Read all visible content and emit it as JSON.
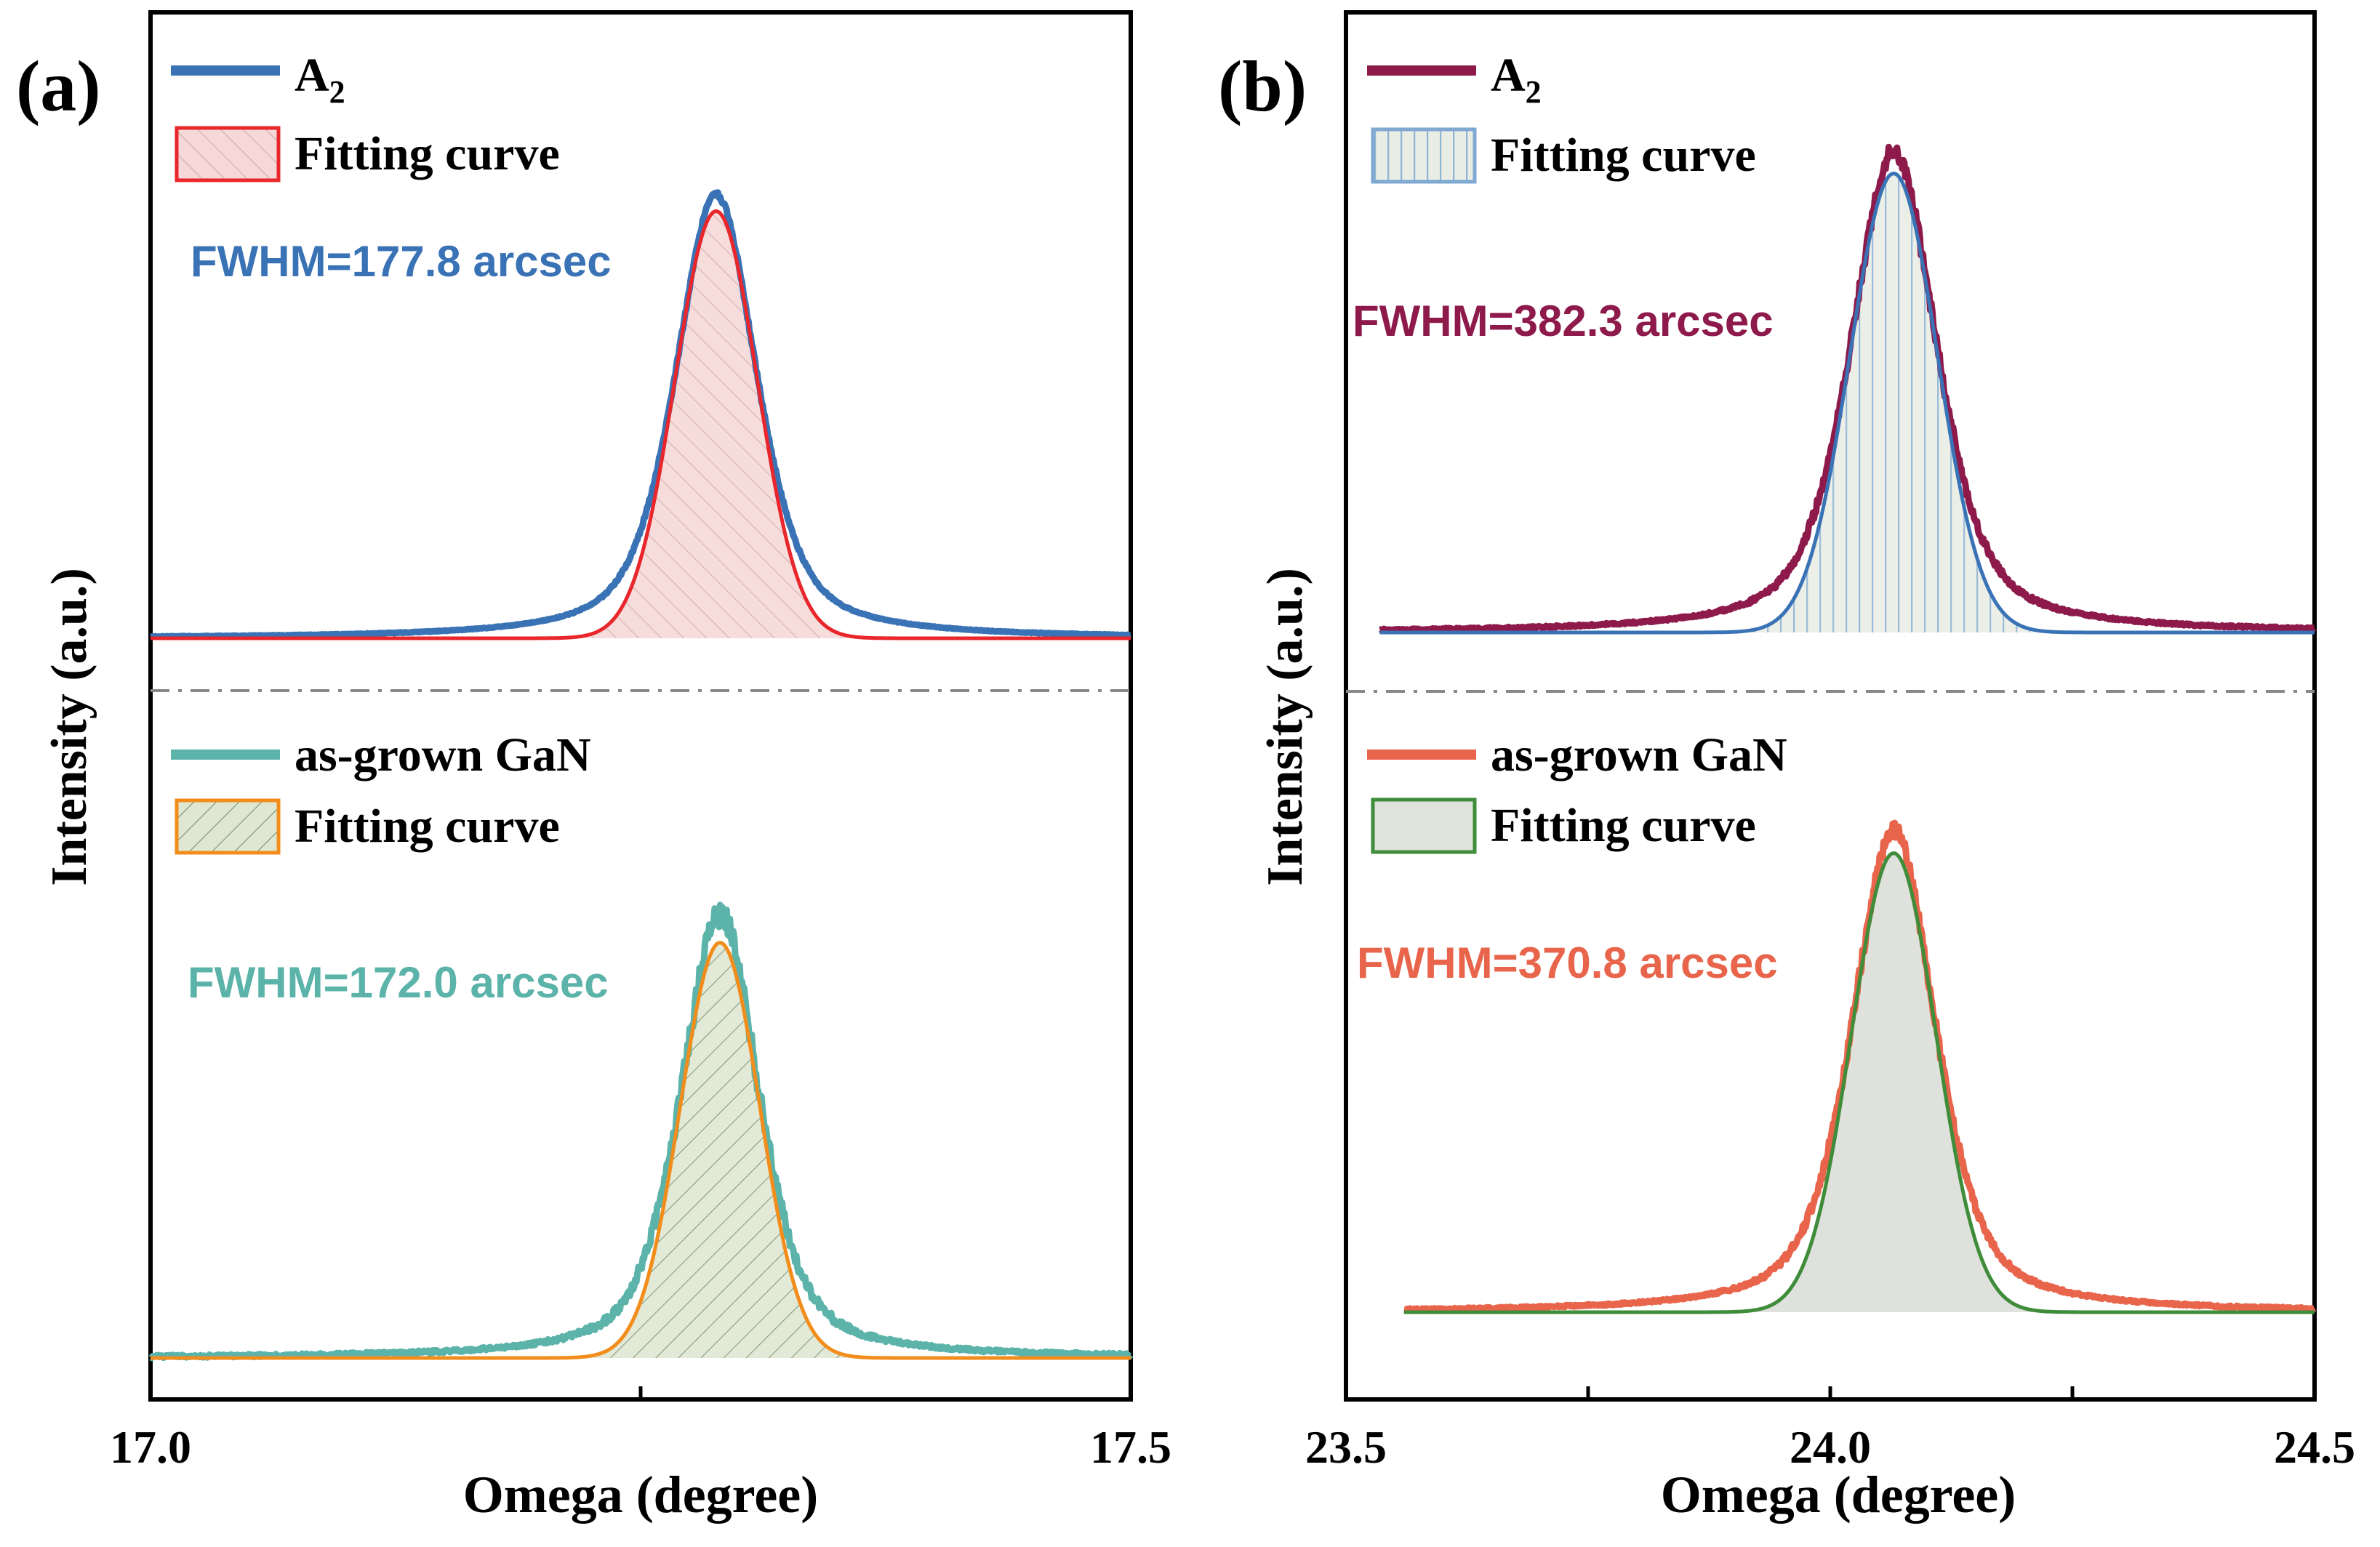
{
  "chart_data": [
    {
      "type": "line",
      "panel_label": "(a)",
      "xlabel": "Omega (degree)",
      "ylabel": "Intensity (a.u.)",
      "xlim": [
        17.0,
        17.5
      ],
      "x_tick_labels": [
        "17.0",
        "17.5"
      ],
      "x_ticks": [
        17.0,
        17.25,
        17.5
      ],
      "ylim": [
        0,
        1
      ],
      "subplots": [
        {
          "name": "top",
          "legend": [
            {
              "label": "A",
              "subscript": "2",
              "kind": "line",
              "color": "#3a73b5"
            },
            {
              "label": "Fitting curve",
              "kind": "hatched-box",
              "edge": "#e8262b",
              "fill": "#f6d8d8"
            }
          ],
          "annotation": {
            "text": "FWHM=177.8 arcsec",
            "color": "#3a73b5"
          },
          "series": [
            {
              "name": "A2",
              "role": "data",
              "color": "#3a73b5",
              "center": 17.2885,
              "fwhm_arcsec": 177.8,
              "amplitude": 0.79,
              "baseline": 0.0,
              "shape": "lorentz-like",
              "noise": 0.004
            },
            {
              "name": "Fitting curve",
              "role": "fit",
              "color": "#e8262b",
              "fill": "#f6d8d8",
              "hatch": "diag-down",
              "center": 17.2885,
              "fwhm_arcsec": 177.8,
              "amplitude": 0.76,
              "baseline": 0.0,
              "shape": "gauss-like"
            }
          ]
        },
        {
          "name": "bottom",
          "legend": [
            {
              "label": "as-grown GaN",
              "kind": "line",
              "color": "#5bb3aa"
            },
            {
              "label": "Fitting curve",
              "kind": "hatched-box",
              "edge": "#f28d1c",
              "fill": "#dfe6d2"
            }
          ],
          "annotation": {
            "text": "FWHM=172.0 arcsec",
            "color": "#5bb3aa"
          },
          "series": [
            {
              "name": "as-grown GaN",
              "role": "data",
              "color": "#5bb3aa",
              "center": 17.2905,
              "fwhm_arcsec": 172.0,
              "amplitude": 0.79,
              "baseline": 0.0,
              "shape": "lorentz-like",
              "noise": 0.018
            },
            {
              "name": "Fitting curve",
              "role": "fit",
              "color": "#f28d1c",
              "fill": "#dfe6d2",
              "hatch": "diag-up",
              "center": 17.2905,
              "fwhm_arcsec": 172.0,
              "amplitude": 0.74,
              "baseline": 0.0,
              "shape": "gauss-like"
            }
          ]
        }
      ]
    },
    {
      "type": "line",
      "panel_label": "(b)",
      "xlabel": "Omega (degree)",
      "ylabel": "Intensity (a.u.)",
      "xlim": [
        23.5,
        24.5
      ],
      "x_tick_labels": [
        "23.5",
        "24.0",
        "24.5"
      ],
      "x_ticks": [
        23.5,
        23.75,
        24.0,
        24.25,
        24.5
      ],
      "ylim": [
        0,
        1
      ],
      "subplots": [
        {
          "name": "top",
          "legend": [
            {
              "label": "A",
              "subscript": "2",
              "kind": "line",
              "color": "#8d1a4b"
            },
            {
              "label": "Fitting curve",
              "kind": "striped-box",
              "edge": "#3a73b5",
              "fill": "#eef0e7"
            }
          ],
          "annotation": {
            "text": "FWHM=382.3 arcsec",
            "color": "#8d1a4b"
          },
          "series": [
            {
              "name": "A2",
              "role": "data",
              "color": "#8d1a4b",
              "center": 24.0655,
              "fwhm_arcsec": 382.3,
              "amplitude": 0.86,
              "baseline": 0.0,
              "shape": "lorentz-like",
              "noise": 0.012
            },
            {
              "name": "Fitting curve",
              "role": "fit",
              "color": "#3a73b5",
              "fill": "#e6ebe9",
              "hatch": "vertical",
              "center": 24.0655,
              "fwhm_arcsec": 382.3,
              "amplitude": 0.82,
              "baseline": 0.0,
              "shape": "gauss-like"
            }
          ]
        },
        {
          "name": "bottom",
          "legend": [
            {
              "label": "as-grown GaN",
              "kind": "line",
              "color": "#e8654c"
            },
            {
              "label": "Fitting curve",
              "kind": "solid-box",
              "edge": "#3f8c3a",
              "fill": "#dfe3dc"
            }
          ],
          "annotation": {
            "text": "FWHM=370.8 arcsec",
            "color": "#e8654c"
          },
          "series": [
            {
              "name": "as-grown GaN",
              "role": "data",
              "color": "#e8654c",
              "center": 24.0655,
              "fwhm_arcsec": 370.8,
              "amplitude": 0.86,
              "baseline": 0.0,
              "shape": "lorentz-like",
              "noise": 0.012
            },
            {
              "name": "Fitting curve",
              "role": "fit",
              "color": "#3f8c3a",
              "fill": "#dcdfd8",
              "hatch": "none",
              "center": 24.0655,
              "fwhm_arcsec": 370.8,
              "amplitude": 0.82,
              "baseline": 0.0,
              "shape": "gauss-like"
            }
          ]
        }
      ]
    }
  ]
}
